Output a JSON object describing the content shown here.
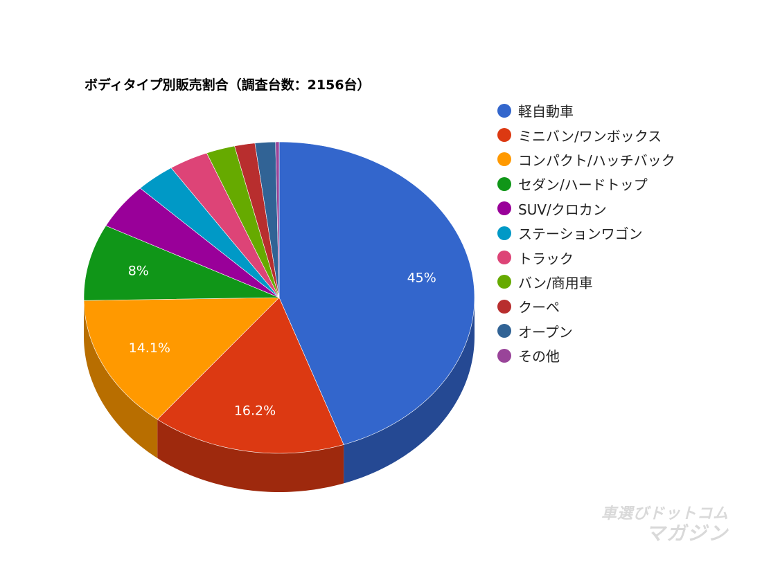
{
  "chart_data": {
    "type": "pie",
    "title": "ボディタイプ別販売割合（調査台数：2156台）",
    "slices": [
      {
        "label": "軽自動車",
        "value": 45,
        "color": "#3366cc",
        "data_label": "45%"
      },
      {
        "label": "ミニバン/ワンボックス",
        "value": 16.2,
        "color": "#dc3912",
        "data_label": "16.2%"
      },
      {
        "label": "コンパクト/ハッチバック",
        "value": 14.1,
        "color": "#ff9900",
        "data_label": "14.1%"
      },
      {
        "label": "セダン/ハードトップ",
        "value": 8,
        "color": "#109618",
        "data_label": "8%"
      },
      {
        "label": "SUV/クロカン",
        "value": 4.8,
        "color": "#990099",
        "data_label": ""
      },
      {
        "label": "ステーションワゴン",
        "value": 3.3,
        "color": "#0099c6",
        "data_label": ""
      },
      {
        "label": "トラック",
        "value": 3.3,
        "color": "#dd4477",
        "data_label": ""
      },
      {
        "label": "バン/商用車",
        "value": 2.4,
        "color": "#66aa00",
        "data_label": ""
      },
      {
        "label": "クーペ",
        "value": 1.7,
        "color": "#b82e2e",
        "data_label": ""
      },
      {
        "label": "オープン",
        "value": 1.7,
        "color": "#316395",
        "data_label": ""
      },
      {
        "label": "その他",
        "value": 0.3,
        "color": "#994499",
        "data_label": ""
      }
    ],
    "legend_position": "right",
    "style": "3d"
  },
  "watermark": {
    "line1": "車選びドットコム",
    "line2": "マガジン"
  }
}
